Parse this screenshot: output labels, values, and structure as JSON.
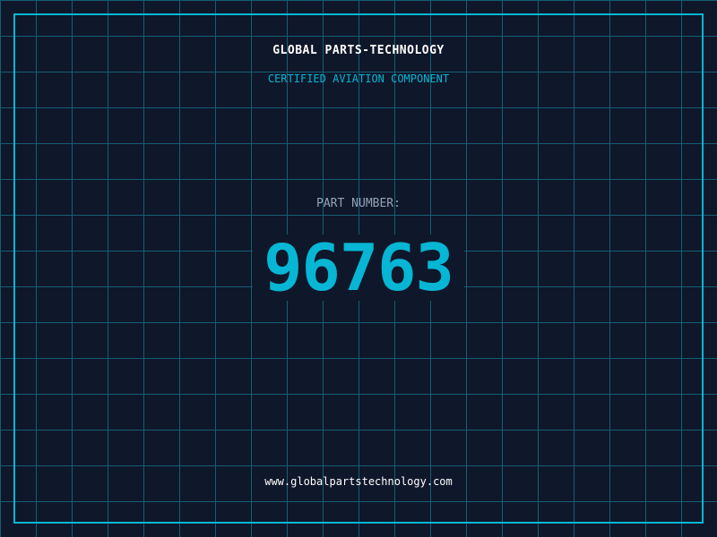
{
  "header": {
    "title": "GLOBAL PARTS-TECHNOLOGY",
    "subtitle": "CERTIFIED AVIATION COMPONENT"
  },
  "part": {
    "label": "PART NUMBER:",
    "number": "96763"
  },
  "footer": {
    "url": "www.globalpartstechnology.com"
  },
  "colors": {
    "background": "#0f172a",
    "accent": "#06b6d4",
    "grid": "#155e75"
  }
}
